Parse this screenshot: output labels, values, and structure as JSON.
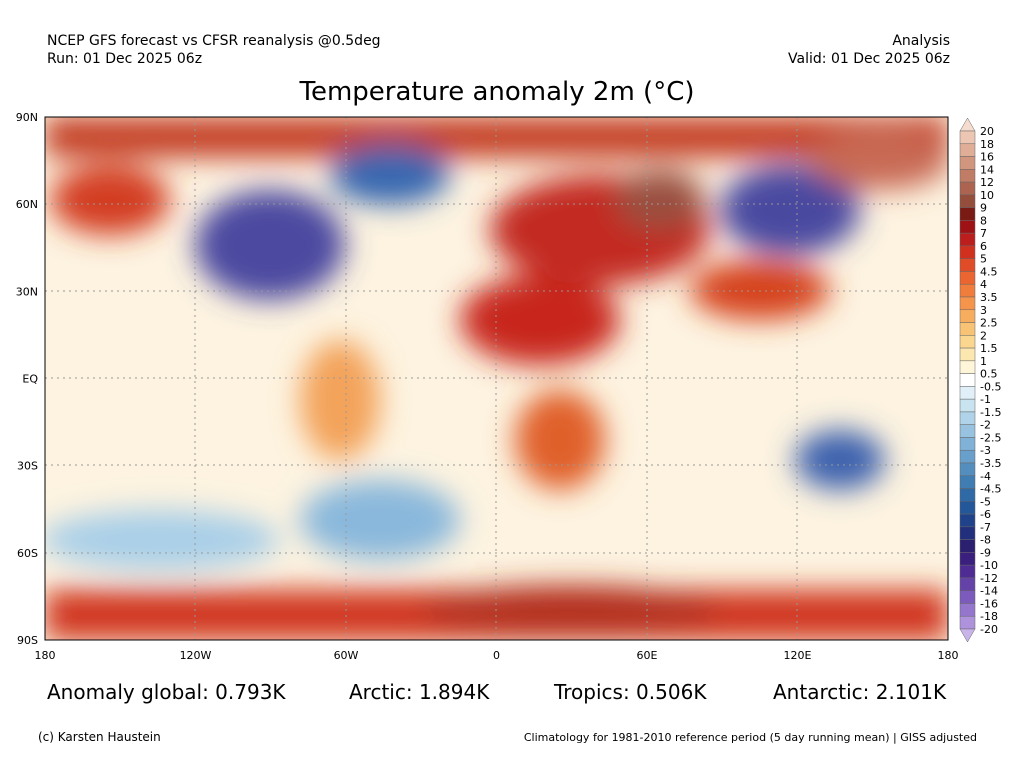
{
  "header": {
    "left": [
      "NCEP GFS forecast vs CFSR reanalysis @0.5deg",
      "Run: 01 Dec 2025 06z"
    ],
    "right": [
      "Analysis",
      "Valid: 01 Dec 2025 06z"
    ],
    "title": "Temperature anomaly 2m (°C)"
  },
  "map": {
    "lat_labels": [
      "90N",
      "60N",
      "30N",
      "EQ",
      "30S",
      "60S",
      "90S"
    ],
    "lon_labels": [
      "180",
      "120W",
      "60W",
      "0",
      "60E",
      "120E",
      "180"
    ]
  },
  "colorbar": {
    "labels": [
      "20",
      "18",
      "16",
      "14",
      "12",
      "10",
      "9",
      "8",
      "7",
      "6",
      "5",
      "4.5",
      "4",
      "3.5",
      "3",
      "2.5",
      "2",
      "1.5",
      "1",
      "0.5",
      "-0.5",
      "-1",
      "-1.5",
      "-2",
      "-2.5",
      "-3",
      "-3.5",
      "-4",
      "-4.5",
      "-5",
      "-6",
      "-7",
      "-8",
      "-9",
      "-10",
      "-12",
      "-14",
      "-16",
      "-18",
      "-20"
    ],
    "colors": [
      "#f5dccf",
      "#ecc6b2",
      "#e0ae97",
      "#d2957d",
      "#c17c65",
      "#ac6450",
      "#954d3c",
      "#7a1a14",
      "#9e1216",
      "#bc1e1e",
      "#d2301f",
      "#e04b28",
      "#ea6530",
      "#f07d3c",
      "#f4954b",
      "#f7ad5e",
      "#f9c375",
      "#fbd68f",
      "#fde7b1",
      "#fff5d8",
      "#ffffff",
      "#e1f0f8",
      "#c9e3f1",
      "#b0d3e9",
      "#97c2e0",
      "#80b1d6",
      "#699fcb",
      "#548ebf",
      "#407db3",
      "#2f6aa6",
      "#24569a",
      "#1f428b",
      "#222f7c",
      "#2b1f70",
      "#3a1f7e",
      "#4e2c93",
      "#6542a8",
      "#7c5bbc",
      "#9576cd",
      "#ae93dc",
      "#c9b4ea"
    ]
  },
  "stats": [
    "Anomaly global: 0.793K",
    "Arctic: 1.894K",
    "Tropics: 0.506K",
    "Antarctic: 2.101K"
  ],
  "footer": {
    "left": "(c) Karsten Haustein",
    "right": "Climatology for 1981-2010 reference period (5 day running mean) | GISS adjusted"
  }
}
